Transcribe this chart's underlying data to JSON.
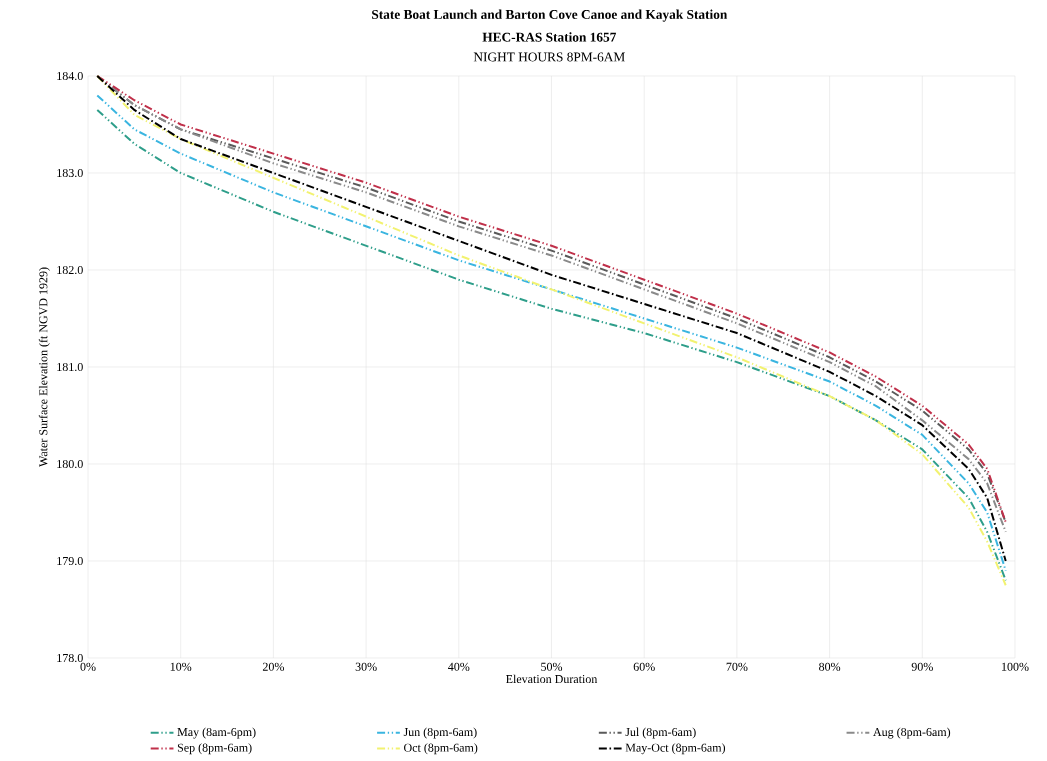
{
  "chart_data": {
    "type": "line",
    "title": "State Boat Launch and Barton Cove Canoe and Kayak Station",
    "subtitle": "HEC-RAS Station 1657",
    "annotations": [
      "NIGHT HOURS 8PM-6AM"
    ],
    "xlabel": "Elevation Duration",
    "ylabel": "Water Surface Elevation (ft NGVD 1929)",
    "x": [
      1,
      5,
      10,
      20,
      30,
      40,
      50,
      60,
      70,
      80,
      85,
      90,
      95,
      97,
      99
    ],
    "series": [
      {
        "name": "May (8am-6pm)",
        "color": "#2e9e8a",
        "line_style": "dashed",
        "values": [
          183.65,
          183.3,
          183.0,
          182.6,
          182.25,
          181.9,
          181.6,
          181.35,
          181.05,
          180.7,
          180.45,
          180.15,
          179.65,
          179.3,
          178.8
        ]
      },
      {
        "name": "Jun (8pm-6am)",
        "color": "#3ab5e0",
        "line_style": "dashed",
        "values": [
          183.8,
          183.45,
          183.2,
          182.8,
          182.45,
          182.1,
          181.8,
          181.5,
          181.2,
          180.85,
          180.6,
          180.3,
          179.8,
          179.5,
          178.9
        ]
      },
      {
        "name": "Jul (8pm-6am)",
        "color": "#5a5a5a",
        "line_style": "dashed",
        "values": [
          184.0,
          183.7,
          183.45,
          183.15,
          182.85,
          182.5,
          182.2,
          181.85,
          181.5,
          181.1,
          180.85,
          180.55,
          180.15,
          179.9,
          179.4
        ]
      },
      {
        "name": "Aug (8pm-6am)",
        "color": "#8a8a8a",
        "line_style": "dashed",
        "values": [
          184.0,
          183.7,
          183.45,
          183.1,
          182.8,
          182.45,
          182.15,
          181.8,
          181.45,
          181.05,
          180.8,
          180.45,
          180.05,
          179.8,
          179.3
        ]
      },
      {
        "name": "Sep (8pm-6am)",
        "color": "#c0304a",
        "line_style": "dashed",
        "values": [
          184.0,
          183.75,
          183.5,
          183.2,
          182.9,
          182.55,
          182.25,
          181.9,
          181.55,
          181.15,
          180.9,
          180.6,
          180.2,
          179.95,
          179.4
        ]
      },
      {
        "name": "Oct (8pm-6am)",
        "color": "#f2f270",
        "line_style": "dashed",
        "values": [
          184.0,
          183.6,
          183.35,
          182.95,
          182.55,
          182.15,
          181.8,
          181.45,
          181.1,
          180.7,
          180.45,
          180.1,
          179.55,
          179.2,
          178.75
        ]
      },
      {
        "name": "May-Oct (8pm-6am)",
        "color": "#000000",
        "line_style": "dashdot",
        "values": [
          184.0,
          183.65,
          183.35,
          183.0,
          182.65,
          182.3,
          181.95,
          181.65,
          181.35,
          180.95,
          180.7,
          180.4,
          179.95,
          179.65,
          179.0
        ]
      }
    ],
    "xlim": [
      0,
      100
    ],
    "xticks": [
      {
        "value": 0,
        "label": "0%"
      },
      {
        "value": 10,
        "label": "10%"
      },
      {
        "value": 20,
        "label": "20%"
      },
      {
        "value": 30,
        "label": "30%"
      },
      {
        "value": 40,
        "label": "40%"
      },
      {
        "value": 50,
        "label": "50%"
      },
      {
        "value": 60,
        "label": "60%"
      },
      {
        "value": 70,
        "label": "70%"
      },
      {
        "value": 80,
        "label": "80%"
      },
      {
        "value": 90,
        "label": "90%"
      },
      {
        "value": 100,
        "label": "100%"
      }
    ],
    "ylim": [
      178,
      184
    ],
    "yticks": [
      {
        "value": 178,
        "label": "178.0"
      },
      {
        "value": 179,
        "label": "179.0"
      },
      {
        "value": 180,
        "label": "180.0"
      },
      {
        "value": 181,
        "label": "181.0"
      },
      {
        "value": 182,
        "label": "182.0"
      },
      {
        "value": 183,
        "label": "183.0"
      },
      {
        "value": 184,
        "label": "184.0"
      }
    ],
    "grid": true,
    "legend": "bottom",
    "marker": "none"
  }
}
